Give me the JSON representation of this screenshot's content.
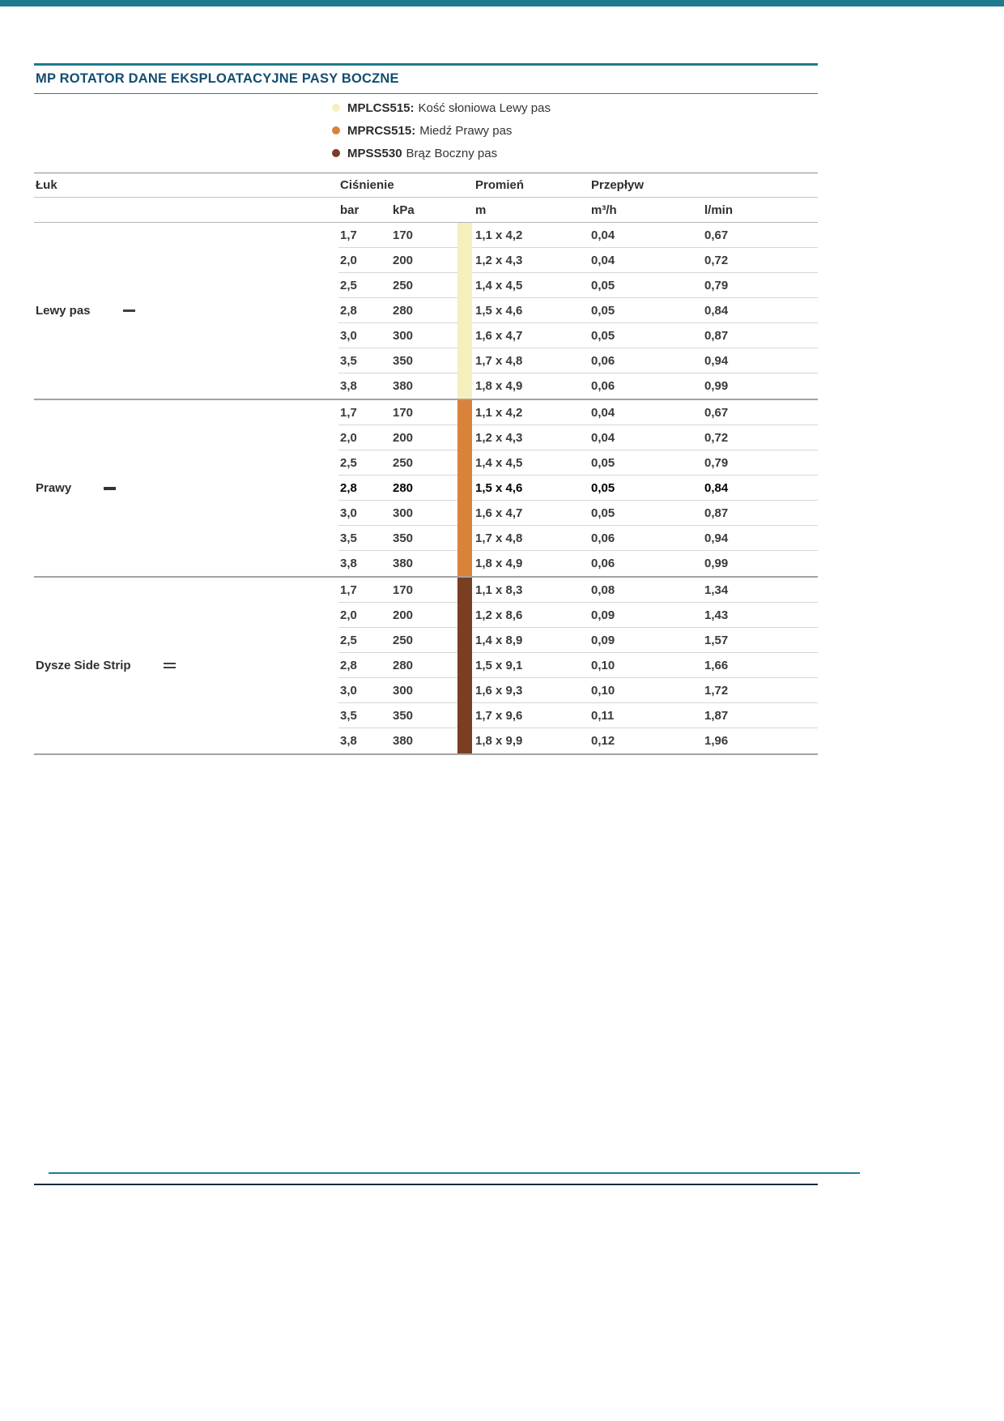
{
  "page": {
    "title": "MP ROTATOR DANE EKSPLOATACYJNE PASY BOCZNE",
    "accent_color": "#1e7b8e",
    "title_color": "#124e70"
  },
  "legend": [
    {
      "model": "MPLCS515:",
      "desc": "Kość słoniowa Lewy pas",
      "color": "#f5efbe"
    },
    {
      "model": "MPRCS515:",
      "desc": "Miedź Prawy pas",
      "color": "#d8823a"
    },
    {
      "model": "MPSS530",
      "desc": "Brąz Boczny pas",
      "color": "#7a3e23"
    }
  ],
  "table": {
    "headers": {
      "arc": "Łuk",
      "pressure": "Ciśnienie",
      "radius": "Promień",
      "flow": "Przepływ"
    },
    "subheaders": {
      "bar": "bar",
      "kpa": "kPa",
      "m": "m",
      "m3h": "m³/h",
      "lmin": "l/min"
    },
    "sections": [
      {
        "label": "Lewy pas",
        "icon": "left-strip-icon",
        "strip_color": "#f5efbe",
        "rows": [
          {
            "bar": "1,7",
            "kpa": "170",
            "m": "1,1 x 4,2",
            "m3h": "0,04",
            "lmin": "0,67",
            "bold": false
          },
          {
            "bar": "2,0",
            "kpa": "200",
            "m": "1,2 x 4,3",
            "m3h": "0,04",
            "lmin": "0,72",
            "bold": false
          },
          {
            "bar": "2,5",
            "kpa": "250",
            "m": "1,4 x 4,5",
            "m3h": "0,05",
            "lmin": "0,79",
            "bold": false
          },
          {
            "bar": "2,8",
            "kpa": "280",
            "m": "1,5 x 4,6",
            "m3h": "0,05",
            "lmin": "0,84",
            "bold": false
          },
          {
            "bar": "3,0",
            "kpa": "300",
            "m": "1,6 x 4,7",
            "m3h": "0,05",
            "lmin": "0,87",
            "bold": false
          },
          {
            "bar": "3,5",
            "kpa": "350",
            "m": "1,7 x 4,8",
            "m3h": "0,06",
            "lmin": "0,94",
            "bold": false
          },
          {
            "bar": "3,8",
            "kpa": "380",
            "m": "1,8 x 4,9",
            "m3h": "0,06",
            "lmin": "0,99",
            "bold": false
          }
        ]
      },
      {
        "label": "Prawy",
        "icon": "right-strip-icon",
        "strip_color": "#d8823a",
        "rows": [
          {
            "bar": "1,7",
            "kpa": "170",
            "m": "1,1 x 4,2",
            "m3h": "0,04",
            "lmin": "0,67",
            "bold": false
          },
          {
            "bar": "2,0",
            "kpa": "200",
            "m": "1,2 x 4,3",
            "m3h": "0,04",
            "lmin": "0,72",
            "bold": false
          },
          {
            "bar": "2,5",
            "kpa": "250",
            "m": "1,4 x 4,5",
            "m3h": "0,05",
            "lmin": "0,79",
            "bold": false
          },
          {
            "bar": "2,8",
            "kpa": "280",
            "m": "1,5 x 4,6",
            "m3h": "0,05",
            "lmin": "0,84",
            "bold": true
          },
          {
            "bar": "3,0",
            "kpa": "300",
            "m": "1,6 x 4,7",
            "m3h": "0,05",
            "lmin": "0,87",
            "bold": false
          },
          {
            "bar": "3,5",
            "kpa": "350",
            "m": "1,7 x 4,8",
            "m3h": "0,06",
            "lmin": "0,94",
            "bold": false
          },
          {
            "bar": "3,8",
            "kpa": "380",
            "m": "1,8 x 4,9",
            "m3h": "0,06",
            "lmin": "0,99",
            "bold": false
          }
        ]
      },
      {
        "label": "Dysze Side Strip",
        "icon": "side-strip-icon",
        "strip_color": "#7a3e23",
        "rows": [
          {
            "bar": "1,7",
            "kpa": "170",
            "m": "1,1 x 8,3",
            "m3h": "0,08",
            "lmin": "1,34",
            "bold": false
          },
          {
            "bar": "2,0",
            "kpa": "200",
            "m": "1,2 x 8,6",
            "m3h": "0,09",
            "lmin": "1,43",
            "bold": false
          },
          {
            "bar": "2,5",
            "kpa": "250",
            "m": "1,4 x 8,9",
            "m3h": "0,09",
            "lmin": "1,57",
            "bold": false
          },
          {
            "bar": "2,8",
            "kpa": "280",
            "m": "1,5 x 9,1",
            "m3h": "0,10",
            "lmin": "1,66",
            "bold": false
          },
          {
            "bar": "3,0",
            "kpa": "300",
            "m": "1,6 x 9,3",
            "m3h": "0,10",
            "lmin": "1,72",
            "bold": false
          },
          {
            "bar": "3,5",
            "kpa": "350",
            "m": "1,7 x 9,6",
            "m3h": "0,11",
            "lmin": "1,87",
            "bold": false
          },
          {
            "bar": "3,8",
            "kpa": "380",
            "m": "1,8 x 9,9",
            "m3h": "0,12",
            "lmin": "1,96",
            "bold": false
          }
        ]
      }
    ]
  }
}
